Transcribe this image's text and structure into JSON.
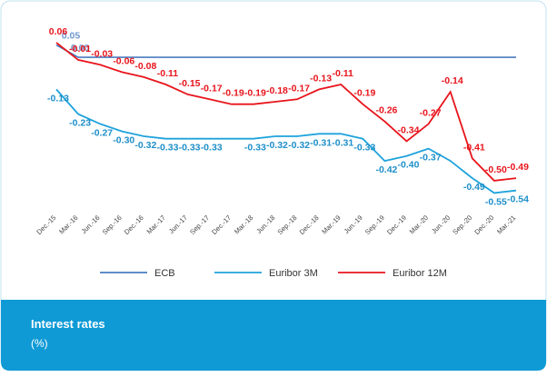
{
  "chart_data": {
    "type": "line",
    "caption": {
      "title": "Interest rates",
      "subtitle": "(%)"
    },
    "categories": [
      "Dec.-15",
      "Mar.-16",
      "Jun.-16",
      "Sep.-16",
      "Dec.-16",
      "Mar.-17",
      "Jun.-17",
      "Sep.-17",
      "Dec.-17",
      "Mar.-18",
      "Jun.-18",
      "Sep.-18",
      "Dec.-18",
      "Mar.-19",
      "Jun.-19",
      "Sep.-19",
      "Dec.-19",
      "Mar.-20",
      "Jun.-20",
      "Sep.-20",
      "Dec.-20",
      "Mar.-21"
    ],
    "ylim": [
      -0.6,
      0.1
    ],
    "series": [
      {
        "name": "ECB",
        "color": "#4a7cc0",
        "label_color": "#6f97cf",
        "values": [
          0.05,
          0,
          0,
          0,
          0,
          0,
          0,
          0,
          0,
          0,
          0,
          0,
          0,
          0,
          0,
          0,
          0,
          0,
          0,
          0,
          0,
          0
        ],
        "value_labels": [
          "0.05",
          "0.00",
          null,
          null,
          null,
          null,
          null,
          null,
          null,
          null,
          null,
          null,
          null,
          null,
          null,
          null,
          null,
          null,
          null,
          null,
          null,
          null
        ]
      },
      {
        "name": "Euribor 3M",
        "color": "#1fa3dc",
        "label_color": "#1d8fc9",
        "values": [
          -0.13,
          -0.23,
          -0.27,
          -0.3,
          -0.32,
          -0.33,
          -0.33,
          -0.33,
          -0.33,
          -0.33,
          -0.32,
          -0.32,
          -0.31,
          -0.31,
          -0.33,
          -0.42,
          -0.4,
          -0.37,
          -0.42,
          -0.49,
          -0.55,
          -0.54
        ],
        "value_labels": [
          "-0.13",
          "-0.23",
          "-0.27",
          "-0.30",
          "-0.32",
          "-0.33",
          "-0.33",
          "-0.33",
          null,
          "-0.33",
          "-0.32",
          "-0.32",
          "-0.31",
          "-0.31",
          "-0.33",
          "-0.42",
          "-0.40",
          "-0.37",
          null,
          "-0.49",
          "-0.55",
          "-0.54"
        ]
      },
      {
        "name": "Euribor 12M",
        "color": "#e8141b",
        "label_color": "#e8141b",
        "values": [
          0.06,
          -0.01,
          -0.03,
          -0.06,
          -0.08,
          -0.11,
          -0.15,
          -0.17,
          -0.19,
          -0.19,
          -0.18,
          -0.17,
          -0.13,
          -0.11,
          -0.19,
          -0.26,
          -0.34,
          -0.27,
          -0.14,
          -0.41,
          -0.5,
          -0.49
        ],
        "value_labels": [
          "0.06",
          "-0.01",
          "-0.03",
          "-0.06",
          "-0.08",
          "-0.11",
          "-0.15",
          "-0.17",
          "-0.19",
          "-0.19",
          "-0.18",
          "-0.17",
          "-0.13",
          "-0.11",
          "-0.19",
          "-0.26",
          "-0.34",
          "-0.27",
          "-0.14",
          "-0.41",
          "-0.50",
          "-0.49"
        ]
      }
    ]
  }
}
